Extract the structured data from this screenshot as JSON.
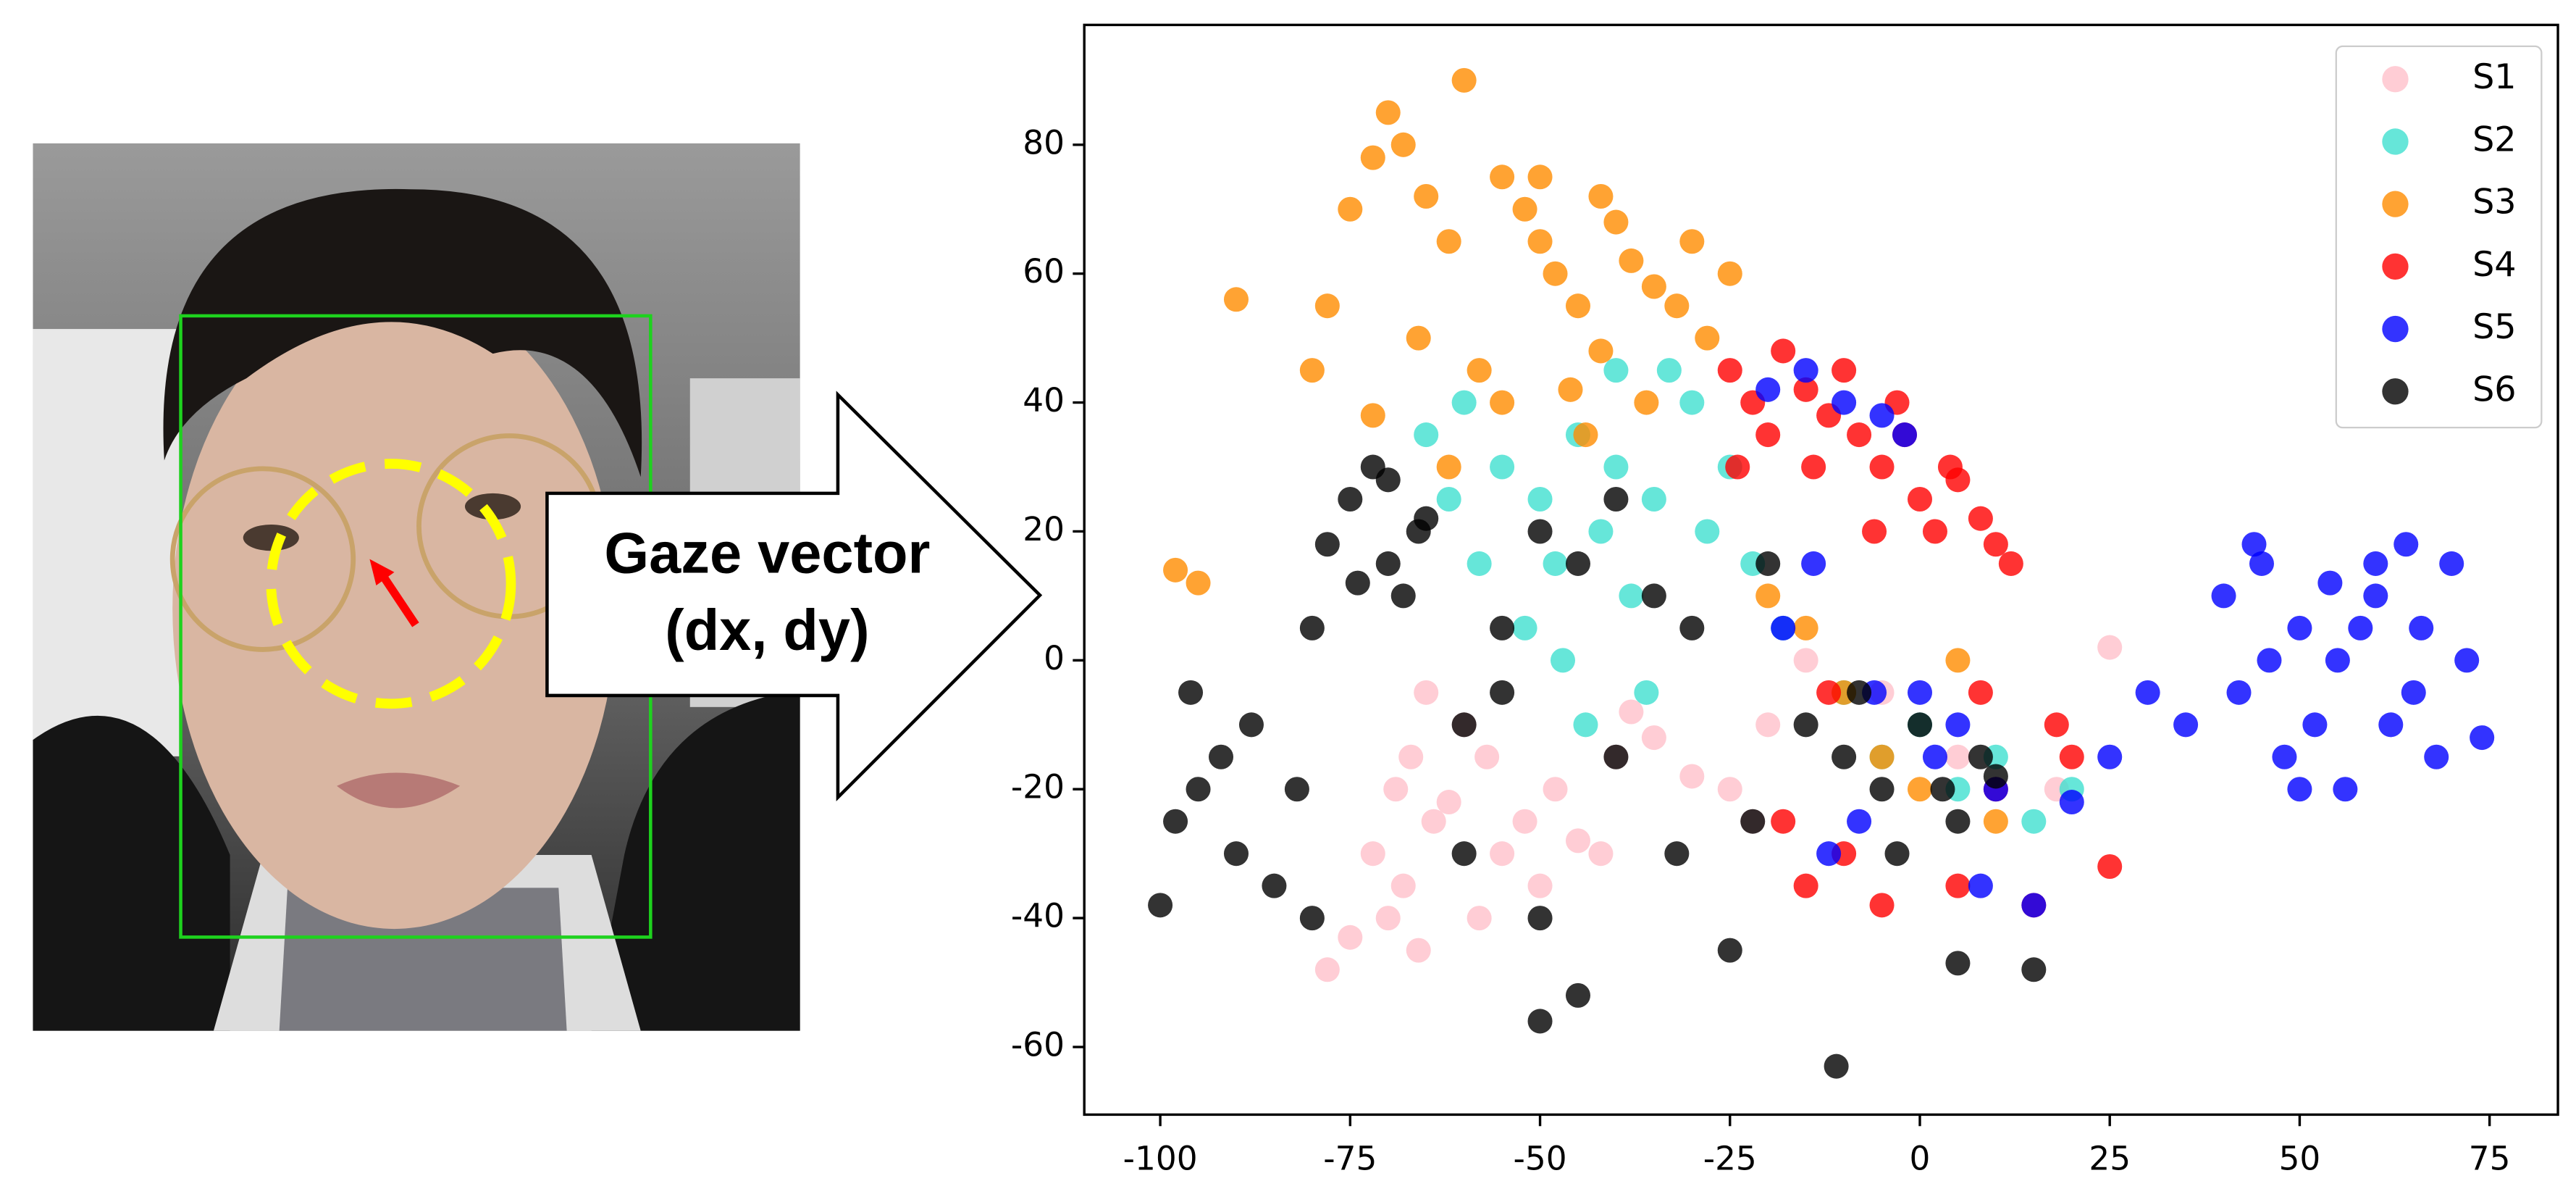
{
  "chart_data": {
    "type": "scatter",
    "xlim": [
      -110,
      84
    ],
    "ylim": [
      -70.5,
      98.6
    ],
    "xticks": [
      -100,
      -75,
      -50,
      -25,
      0,
      25,
      50,
      75
    ],
    "yticks": [
      -60,
      -40,
      -20,
      0,
      20,
      40,
      60,
      80
    ],
    "grid": false,
    "legend": "upper right",
    "series": [
      {
        "name": "S1",
        "color": "#ffc0cb",
        "x": [
          -70,
          -68,
          -72,
          -66,
          -64,
          -67,
          -75,
          -69,
          -55,
          -52,
          -48,
          -50,
          -45,
          -57,
          -60,
          -62,
          -40,
          -35,
          -30,
          -25,
          -22,
          -20,
          -15,
          -5,
          5,
          18,
          25,
          -78,
          -65,
          -58,
          -42,
          -38
        ],
        "values": [
          -40,
          -35,
          -30,
          -45,
          -25,
          -15,
          -43,
          -20,
          -30,
          -25,
          -20,
          -35,
          -28,
          -15,
          -10,
          -22,
          -15,
          -12,
          -18,
          -20,
          -25,
          -10,
          0,
          -5,
          -15,
          -20,
          2,
          -48,
          -5,
          -40,
          -30,
          -8
        ]
      },
      {
        "name": "S2",
        "color": "#40e0d0",
        "x": [
          -65,
          -60,
          -55,
          -50,
          -48,
          -45,
          -42,
          -40,
          -38,
          -35,
          -33,
          -30,
          -28,
          -52,
          -47,
          -58,
          -44,
          -36,
          -25,
          -22,
          -18,
          -10,
          -5,
          0,
          5,
          10,
          15,
          20,
          -62,
          -40
        ],
        "values": [
          35,
          40,
          30,
          25,
          15,
          35,
          20,
          30,
          10,
          25,
          45,
          40,
          20,
          5,
          0,
          15,
          -10,
          -5,
          30,
          15,
          5,
          -5,
          -15,
          -10,
          -20,
          -15,
          -25,
          -20,
          25,
          45
        ]
      },
      {
        "name": "S3",
        "color": "#ff8c00",
        "x": [
          -70,
          -68,
          -72,
          -65,
          -62,
          -60,
          -75,
          -78,
          -66,
          -55,
          -52,
          -50,
          -48,
          -45,
          -42,
          -40,
          -38,
          -35,
          -32,
          -30,
          -28,
          -25,
          -58,
          -46,
          -44,
          -42,
          -36,
          -80,
          -90,
          -98,
          -95,
          -72,
          -62,
          -20,
          -15,
          -10,
          -5,
          0,
          5,
          10,
          -50,
          -55
        ],
        "values": [
          85,
          80,
          78,
          72,
          65,
          90,
          70,
          55,
          50,
          75,
          70,
          65,
          60,
          55,
          72,
          68,
          62,
          58,
          55,
          65,
          50,
          60,
          45,
          42,
          35,
          48,
          40,
          45,
          56,
          14,
          12,
          38,
          30,
          10,
          5,
          -5,
          -15,
          -20,
          0,
          -25,
          75,
          40
        ]
      },
      {
        "name": "S4",
        "color": "#ff0000",
        "x": [
          -25,
          -22,
          -18,
          -15,
          -12,
          -10,
          -8,
          -5,
          -3,
          0,
          2,
          5,
          8,
          10,
          12,
          -6,
          -2,
          4,
          -14,
          -20,
          -24,
          -18,
          -15,
          -10,
          -5,
          5,
          10,
          15,
          18,
          20,
          25,
          -12,
          8
        ],
        "values": [
          45,
          40,
          48,
          42,
          38,
          45,
          35,
          30,
          40,
          25,
          20,
          28,
          22,
          18,
          15,
          20,
          35,
          30,
          30,
          35,
          30,
          -25,
          -35,
          -30,
          -38,
          -35,
          -20,
          -38,
          -10,
          -15,
          -32,
          -5,
          -5
        ]
      },
      {
        "name": "S5",
        "color": "#0000ff",
        "x": [
          40,
          45,
          50,
          55,
          60,
          65,
          70,
          72,
          48,
          52,
          58,
          62,
          68,
          42,
          46,
          54,
          64,
          74,
          56,
          60,
          66,
          50,
          44,
          30,
          25,
          35,
          20,
          -20,
          -15,
          -10,
          -5,
          0,
          5,
          10,
          -12,
          -8,
          2,
          8,
          15,
          -2,
          -18,
          -14,
          -6
        ],
        "values": [
          10,
          15,
          5,
          0,
          10,
          -5,
          15,
          0,
          -15,
          -10,
          5,
          -10,
          -15,
          -5,
          0,
          12,
          18,
          -12,
          -20,
          15,
          5,
          -20,
          18,
          -5,
          -15,
          -10,
          -22,
          42,
          45,
          40,
          38,
          -5,
          -10,
          -20,
          -30,
          -25,
          -15,
          -35,
          -38,
          35,
          5,
          15,
          -5
        ]
      },
      {
        "name": "S6",
        "color": "#000000",
        "x": [
          -75,
          -72,
          -70,
          -68,
          -66,
          -80,
          -78,
          -74,
          -70,
          -65,
          -95,
          -92,
          -98,
          -90,
          -88,
          -85,
          -100,
          -96,
          -82,
          -80,
          -10,
          -5,
          0,
          5,
          8,
          -15,
          -3,
          3,
          10,
          -8,
          -60,
          -55,
          -50,
          -45,
          -40,
          -35,
          -30,
          -50,
          -40,
          -25,
          -20,
          -55,
          -32,
          -22,
          -11,
          -50,
          5,
          15,
          -45,
          -60
        ],
        "values": [
          25,
          30,
          15,
          10,
          20,
          5,
          18,
          12,
          28,
          22,
          -20,
          -15,
          -25,
          -30,
          -10,
          -35,
          -38,
          -5,
          -20,
          -40,
          -15,
          -20,
          -10,
          -25,
          -15,
          -10,
          -30,
          -20,
          -18,
          -5,
          -10,
          5,
          20,
          15,
          25,
          10,
          5,
          -40,
          -15,
          -45,
          15,
          -5,
          -30,
          -25,
          -63,
          -56,
          -47,
          -48,
          -52,
          -30
        ]
      }
    ]
  },
  "figure": {
    "arrow_label": [
      "Gaze vector",
      "(dx, dy)"
    ]
  }
}
